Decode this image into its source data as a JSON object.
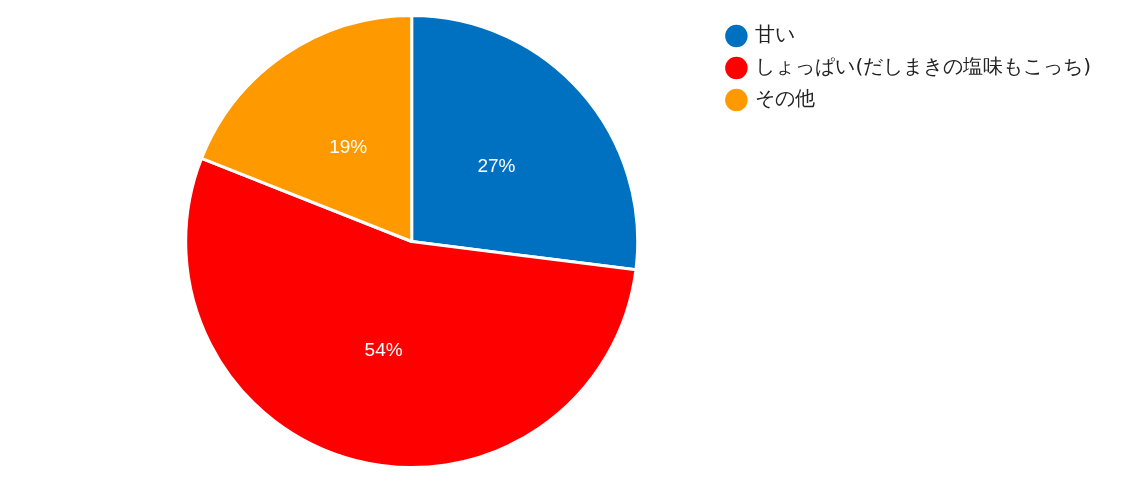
{
  "chart_data": {
    "type": "pie",
    "categories": [
      "甘い",
      "しょっぱい(だしまきの塩味もこっち)",
      "その他"
    ],
    "values": [
      27,
      54,
      19
    ],
    "value_labels": [
      "27%",
      "54%",
      "19%"
    ],
    "colors": [
      "#0070c0",
      "#ff0000",
      "#ff9900"
    ],
    "legend": "top right"
  }
}
